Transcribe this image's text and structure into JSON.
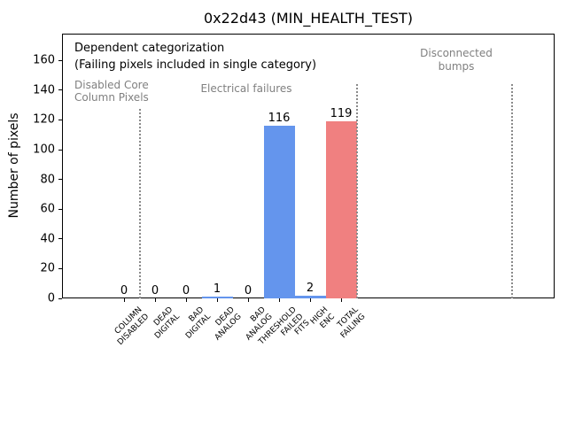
{
  "figure": {
    "title": "0x22d43 (MIN_HEALTH_TEST)"
  },
  "chart_data": {
    "type": "bar",
    "title": "0x22d43 (MIN_HEALTH_TEST)",
    "xlabel": "",
    "ylabel": "Number of pixels",
    "categories": [
      "COLUMN\nDISABLED",
      "DEAD\nDIGITAL",
      "BAD\nDIGITAL",
      "DEAD\nANALOG",
      "BAD\nANALOG",
      "THRESHOLD\nFAILED\nFITS",
      "HIGH\nENC",
      "TOTAL\nFAILING"
    ],
    "values": [
      0,
      0,
      0,
      1,
      0,
      116,
      2,
      119
    ],
    "bar_colors": [
      "#6495ED",
      "#6495ED",
      "#6495ED",
      "#6495ED",
      "#6495ED",
      "#6495ED",
      "#6495ED",
      "#F08080"
    ],
    "yticks": [
      0,
      20,
      40,
      60,
      80,
      100,
      120,
      140,
      160
    ],
    "ylim": [
      0,
      178
    ],
    "grid": false,
    "legend": null,
    "value_labels_shown": true,
    "separator_positions_categories": [
      0.5,
      7.5,
      12.5
    ],
    "separator_color": "#8a8a8a",
    "annotation_gray": "#808080",
    "annotations": [
      {
        "text": "Dependent categorization\n(Failing pixels included in single category)",
        "color": "#000000",
        "align": "left"
      },
      {
        "text": "Disabled Core\nColumn Pixels",
        "color": "#808080",
        "align": "left"
      },
      {
        "text": "Electrical failures",
        "color": "#808080",
        "align": "center"
      },
      {
        "text": "Disconnected\nbumps",
        "color": "#808080",
        "align": "center"
      }
    ]
  }
}
